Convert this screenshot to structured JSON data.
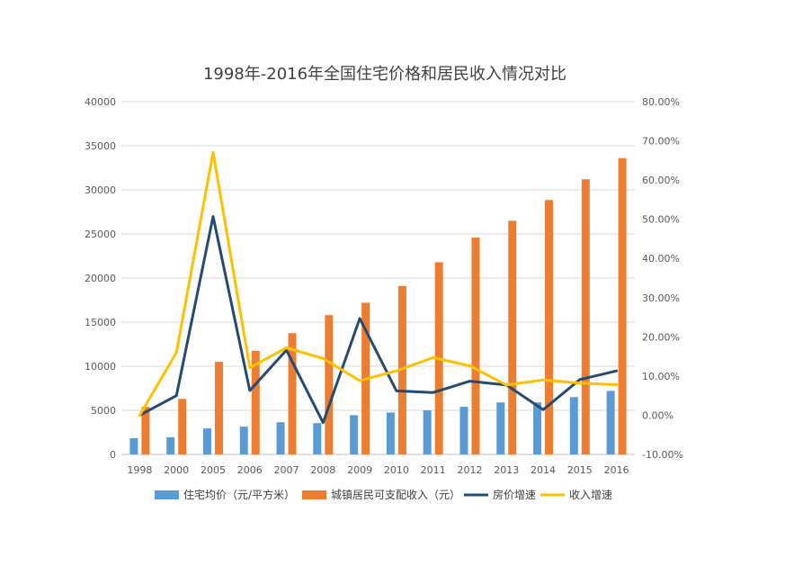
{
  "chart_data": {
    "type": "bar",
    "title": "1998年-2016年全国住宅价格和居民收入情况对比",
    "categories": [
      "1998",
      "2000",
      "2005",
      "2006",
      "2007",
      "2008",
      "2009",
      "2010",
      "2011",
      "2012",
      "2013",
      "2014",
      "2015",
      "2016"
    ],
    "left_axis": {
      "ylim": [
        0,
        40000
      ],
      "ticks": [
        "0",
        "5000",
        "10000",
        "15000",
        "20000",
        "25000",
        "30000",
        "35000",
        "40000"
      ]
    },
    "right_axis": {
      "ylim": [
        -10,
        80
      ],
      "ticks": [
        "-10.00%",
        "0.00%",
        "10.00%",
        "20.00%",
        "30.00%",
        "40.00%",
        "50.00%",
        "60.00%",
        "70.00%",
        "80.00%"
      ]
    },
    "grid": true,
    "legend_position": "bottom",
    "series": [
      {
        "name": "住宅均价（元/平方米）",
        "type": "bar",
        "axis": "left",
        "color": "#5B9BD5",
        "values": [
          1850,
          1950,
          2950,
          3150,
          3650,
          3550,
          4450,
          4750,
          5000,
          5400,
          5900,
          5900,
          6500,
          7200
        ]
      },
      {
        "name": "城镇居民可支配收入（元）",
        "type": "bar",
        "axis": "left",
        "color": "#ED7D31",
        "values": [
          5400,
          6300,
          10500,
          11750,
          13750,
          15800,
          17200,
          19100,
          21800,
          24600,
          26500,
          28850,
          31200,
          33600
        ]
      },
      {
        "name": "房价增速",
        "type": "line",
        "axis": "right",
        "color": "#264B73",
        "values": [
          0.0,
          5.0,
          50.7,
          6.3,
          16.6,
          -1.9,
          24.7,
          6.2,
          5.8,
          8.7,
          7.7,
          1.4,
          9.1,
          11.3
        ]
      },
      {
        "name": "收入增速",
        "type": "line",
        "axis": "right",
        "color": "#FFC000",
        "values": [
          0.0,
          16.0,
          67.1,
          12.1,
          17.2,
          14.5,
          8.8,
          11.3,
          14.7,
          12.6,
          7.7,
          9.0,
          8.2,
          7.8
        ]
      }
    ]
  }
}
